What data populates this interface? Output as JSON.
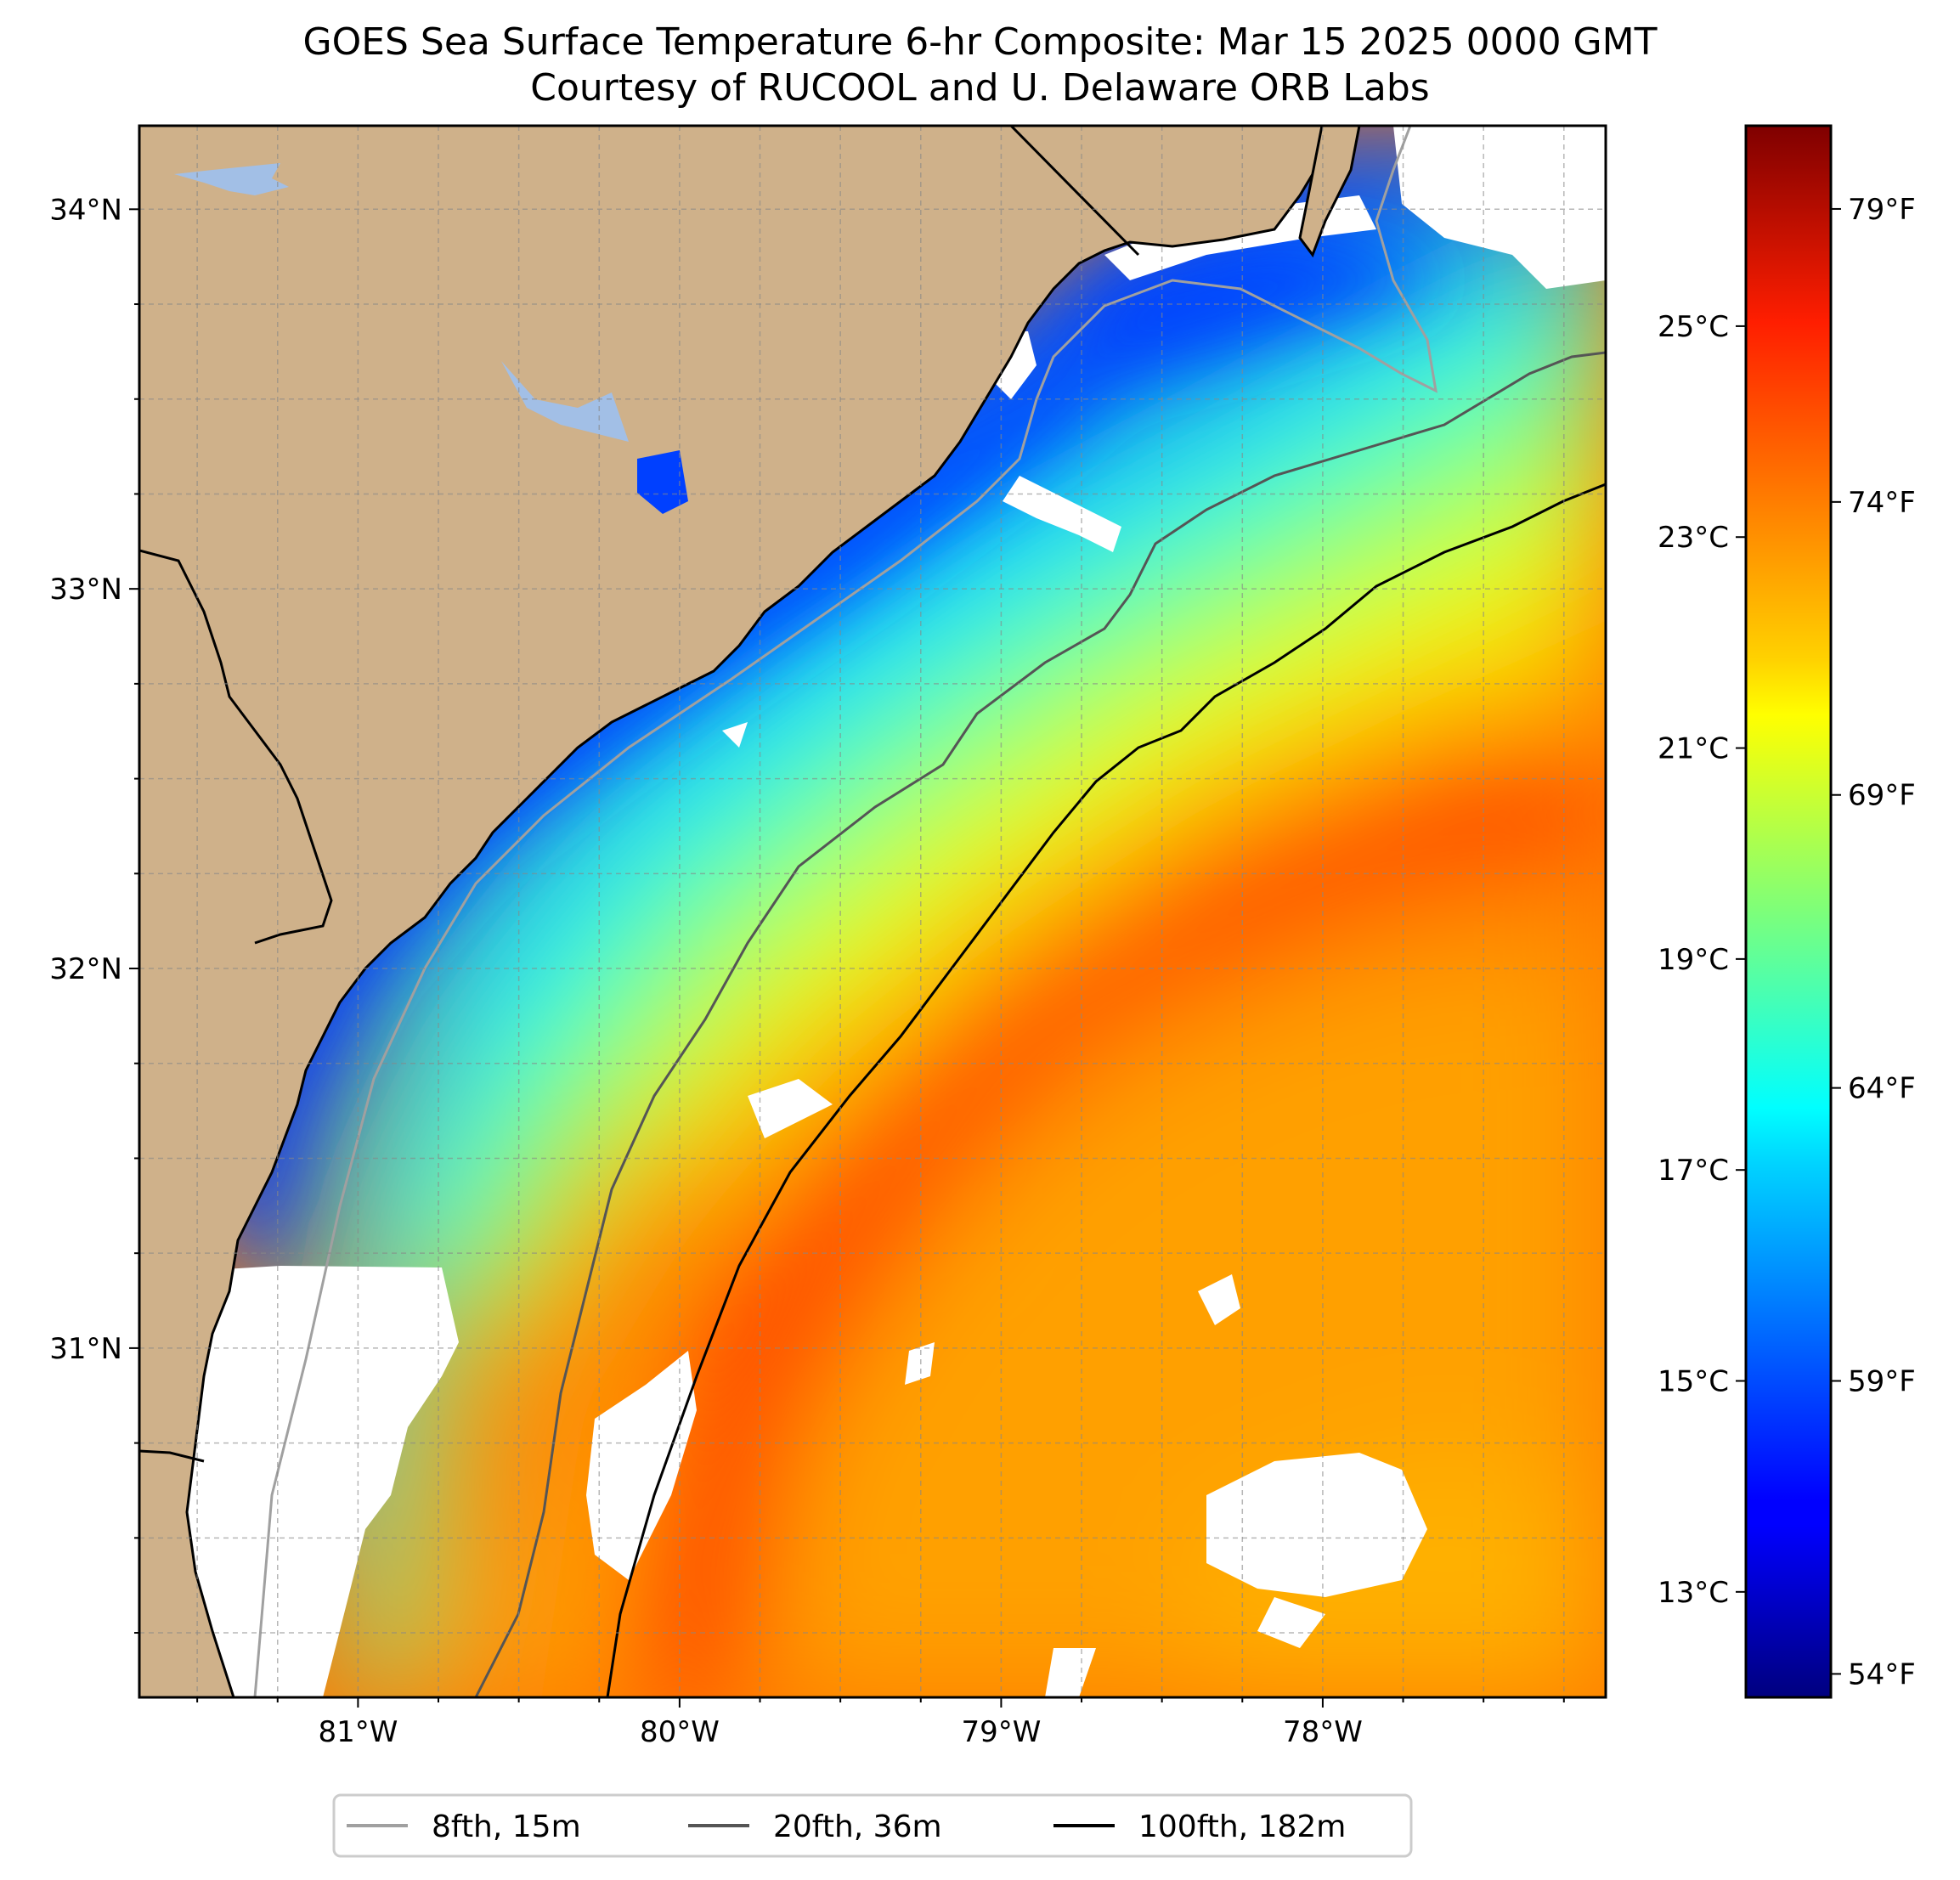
{
  "title": "GOES Sea Surface Temperature 6-hr Composite: Mar 15 2025 0000 GMT",
  "subtitle": "Courtesy of RUCOOL and U. Delaware ORB Labs",
  "map": {
    "lon_range": [
      -81.68,
      -77.12
    ],
    "lat_range": [
      30.08,
      34.22
    ],
    "lon_ticks": [
      {
        "value": -81,
        "label": "81°W"
      },
      {
        "value": -80,
        "label": "80°W"
      },
      {
        "value": -79,
        "label": "79°W"
      },
      {
        "value": -78,
        "label": "78°W"
      }
    ],
    "lat_ticks": [
      {
        "value": 31,
        "label": "31°N"
      },
      {
        "value": 32,
        "label": "32°N"
      },
      {
        "value": 33,
        "label": "33°N"
      },
      {
        "value": 34,
        "label": "34°N"
      }
    ],
    "grid": true,
    "land_color": "#cfb18a",
    "water_body_color": "#a2bfe6",
    "nodata_color": "#ffffff"
  },
  "colorbar": {
    "colormap": "jet",
    "range_c": [
      12.0,
      26.9
    ],
    "celsius_ticks": [
      {
        "value": 13,
        "label": "13°C"
      },
      {
        "value": 15,
        "label": "15°C"
      },
      {
        "value": 17,
        "label": "17°C"
      },
      {
        "value": 19,
        "label": "19°C"
      },
      {
        "value": 21,
        "label": "21°C"
      },
      {
        "value": 23,
        "label": "23°C"
      },
      {
        "value": 25,
        "label": "25°C"
      }
    ],
    "fahrenheit_ticks": [
      {
        "value": 54,
        "label": "54°F"
      },
      {
        "value": 59,
        "label": "59°F"
      },
      {
        "value": 64,
        "label": "64°F"
      },
      {
        "value": 69,
        "label": "69°F"
      },
      {
        "value": 74,
        "label": "74°F"
      },
      {
        "value": 79,
        "label": "79°F"
      }
    ]
  },
  "legend": {
    "placement": "bottom-center",
    "items": [
      {
        "label": "8fth, 15m",
        "color": "#a0a0a0"
      },
      {
        "label": "20fth, 36m",
        "color": "#555555"
      },
      {
        "label": "100fth, 182m",
        "color": "#000000"
      }
    ]
  }
}
